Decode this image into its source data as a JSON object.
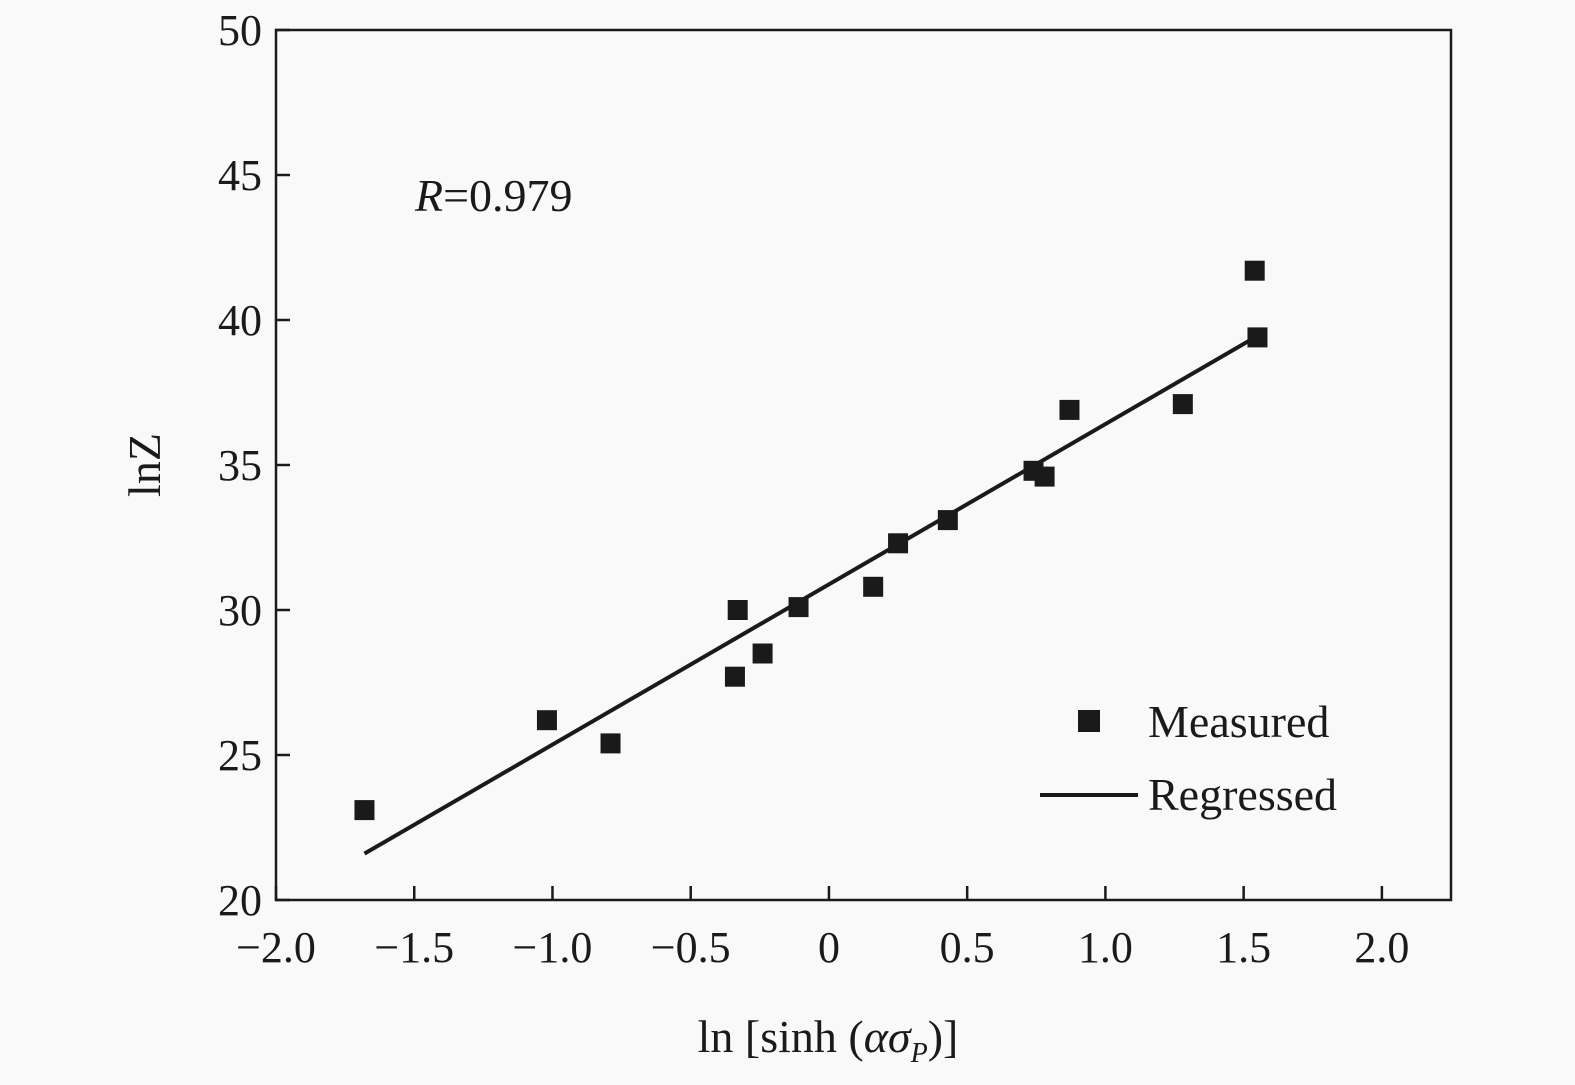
{
  "chart_data": {
    "type": "scatter",
    "title": "",
    "xlabel": "ln [sinh (ασP)]",
    "xlabel_parts": {
      "prefix": "ln [sinh (",
      "alpha": "α",
      "sigma": "σ",
      "sub": "P",
      "suffix": ")]"
    },
    "ylabel": "lnZ",
    "xlim": [
      -2.0,
      2.25
    ],
    "ylim": [
      20,
      50
    ],
    "xticks": [
      -2.0,
      -1.5,
      -1.0,
      -0.5,
      0,
      0.5,
      1.0,
      1.5,
      2.0
    ],
    "xtick_labels": [
      "−2.0",
      "−1.5",
      "−1.0",
      "−0.5",
      "0",
      "0.5",
      "1.0",
      "1.5",
      "2.0"
    ],
    "yticks": [
      20,
      25,
      30,
      35,
      40,
      45,
      50
    ],
    "ytick_labels": [
      "20",
      "25",
      "30",
      "35",
      "40",
      "45",
      "50"
    ],
    "grid": false,
    "legend_position": "bottom-right",
    "annotation": {
      "italic": "R",
      "text": "=0.979"
    },
    "series": [
      {
        "name": "Measured",
        "kind": "scatter",
        "marker": "square",
        "color": "#1a1a1a",
        "x": [
          -1.68,
          -1.02,
          -0.79,
          -0.34,
          -0.33,
          -0.24,
          -0.11,
          0.16,
          0.25,
          0.43,
          0.74,
          0.78,
          0.87,
          1.28,
          1.54,
          1.55
        ],
        "y": [
          23.1,
          26.2,
          25.4,
          27.7,
          30.0,
          28.5,
          30.1,
          30.8,
          32.3,
          33.1,
          34.8,
          34.6,
          36.9,
          37.1,
          41.7,
          39.4
        ]
      },
      {
        "name": "Regressed",
        "kind": "line",
        "color": "#1a1a1a",
        "x": [
          -1.68,
          1.53
        ],
        "y": [
          21.6,
          39.34
        ]
      }
    ]
  }
}
